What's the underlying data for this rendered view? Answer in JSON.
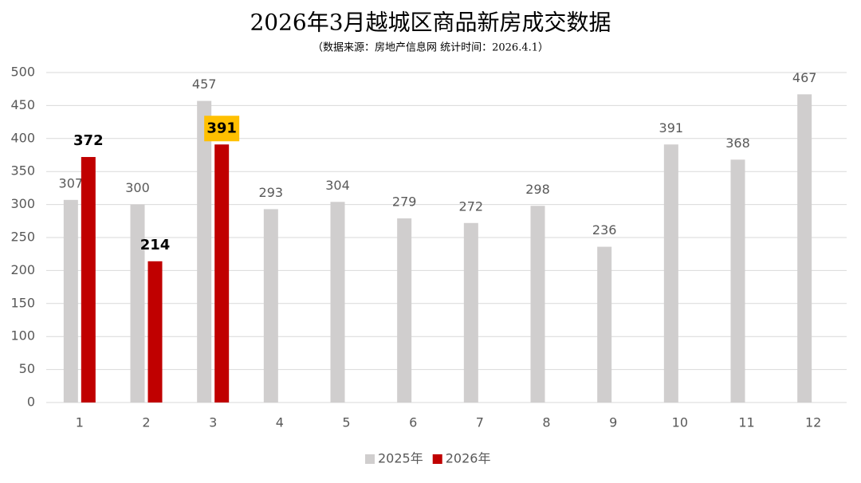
{
  "chart_data": {
    "type": "bar",
    "title": "2026年3月越城区商品新房成交数据",
    "subtitle": "（数据来源：房地产信息网  统计时间：2026.4.1）",
    "categories": [
      "1",
      "2",
      "3",
      "4",
      "5",
      "6",
      "7",
      "8",
      "9",
      "10",
      "11",
      "12"
    ],
    "series": [
      {
        "name": "2025年",
        "color": "#d0cece",
        "values": [
          307,
          300,
          457,
          293,
          304,
          279,
          272,
          298,
          236,
          391,
          368,
          467
        ]
      },
      {
        "name": "2026年",
        "color": "#c00000",
        "values": [
          372,
          214,
          391,
          null,
          null,
          null,
          null,
          null,
          null,
          null,
          null,
          null
        ]
      }
    ],
    "highlight": {
      "series": 1,
      "index": 2,
      "color": "#ffc000"
    },
    "ylim": [
      0,
      500
    ],
    "yticks": [
      0,
      50,
      100,
      150,
      200,
      250,
      300,
      350,
      400,
      450,
      500
    ],
    "grid": true,
    "legend": "bottom"
  }
}
